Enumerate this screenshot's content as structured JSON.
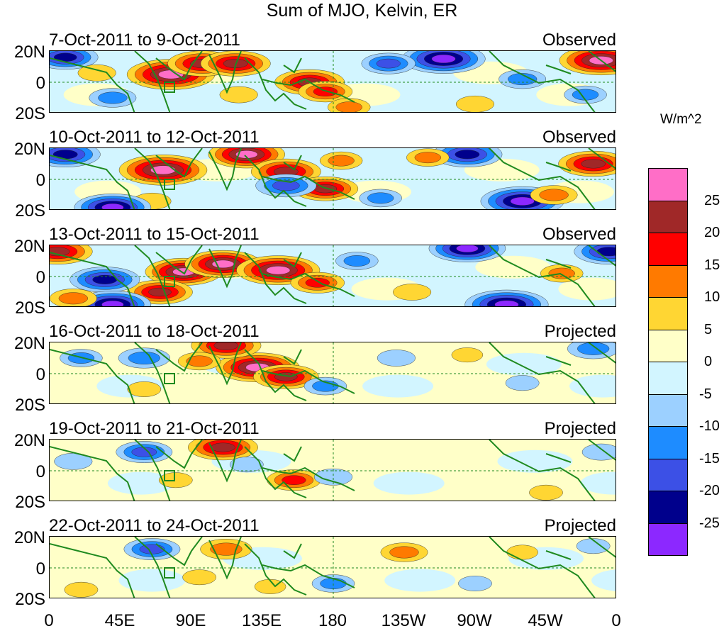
{
  "chart_data": {
    "type": "heatmap",
    "title": "Sum of MJO, Kelvin, ER",
    "units": "W/m^2",
    "x_tick_labels": [
      "0",
      "45E",
      "90E",
      "135E",
      "180",
      "135W",
      "90W",
      "45W",
      "0"
    ],
    "y_tick_labels": [
      "20N",
      "0",
      "20S"
    ],
    "lon_range": [
      0,
      360
    ],
    "lat_range": [
      -20,
      20
    ],
    "colorbar": {
      "labels": [
        "25",
        "20",
        "15",
        "10",
        "5",
        "0",
        "-5",
        "-10",
        "-15",
        "-20",
        "-25"
      ],
      "colors": [
        "#ff6ec7",
        "#a02828",
        "#ff0000",
        "#ff7a00",
        "#ffd633",
        "#ffffc8",
        "#d2f5ff",
        "#9cd0ff",
        "#1e8cff",
        "#3c50e6",
        "#00008c",
        "#8c28ff"
      ]
    },
    "panels": [
      {
        "date_label": "7-Oct-2011 to 9-Oct-2011",
        "status": "Observed",
        "blobs": [
          {
            "lon": 77,
            "lat": 5,
            "value": 30
          },
          {
            "lon": 97,
            "lat": 12,
            "value": 22
          },
          {
            "lon": 118,
            "lat": 12,
            "value": 22
          },
          {
            "lon": 165,
            "lat": 0,
            "value": 22
          },
          {
            "lon": 175,
            "lat": -6,
            "value": 15
          },
          {
            "lon": 250,
            "lat": 15,
            "value": -28
          },
          {
            "lon": 215,
            "lat": 12,
            "value": -15
          },
          {
            "lon": 10,
            "lat": 16,
            "value": -20
          },
          {
            "lon": 350,
            "lat": 14,
            "value": 28
          },
          {
            "lon": 30,
            "lat": 6,
            "value": 8
          },
          {
            "lon": 190,
            "lat": -16,
            "value": 10
          },
          {
            "lon": 300,
            "lat": 2,
            "value": -12
          },
          {
            "lon": 120,
            "lat": -8,
            "value": 8
          },
          {
            "lon": 340,
            "lat": -8,
            "value": -10
          },
          {
            "lon": 40,
            "lat": -10,
            "value": -12
          },
          {
            "lon": 270,
            "lat": -14,
            "value": 8
          }
        ]
      },
      {
        "date_label": "10-Oct-2011 to 12-Oct-2011",
        "status": "Observed",
        "blobs": [
          {
            "lon": 72,
            "lat": 6,
            "value": 30
          },
          {
            "lon": 125,
            "lat": 16,
            "value": 25
          },
          {
            "lon": 150,
            "lat": 5,
            "value": 22
          },
          {
            "lon": 175,
            "lat": -6,
            "value": 20
          },
          {
            "lon": 185,
            "lat": 12,
            "value": 10
          },
          {
            "lon": 65,
            "lat": -14,
            "value": 8
          },
          {
            "lon": 300,
            "lat": -14,
            "value": -28
          },
          {
            "lon": 265,
            "lat": 16,
            "value": -22
          },
          {
            "lon": 10,
            "lat": 16,
            "value": -22
          },
          {
            "lon": 40,
            "lat": -18,
            "value": -25
          },
          {
            "lon": 150,
            "lat": -4,
            "value": -18
          },
          {
            "lon": 345,
            "lat": 10,
            "value": 22
          },
          {
            "lon": 240,
            "lat": 14,
            "value": 10
          },
          {
            "lon": 320,
            "lat": -10,
            "value": 12
          },
          {
            "lon": 210,
            "lat": -12,
            "value": -10
          }
        ]
      },
      {
        "date_label": "13-Oct-2011 to 15-Oct-2011",
        "status": "Observed",
        "blobs": [
          {
            "lon": 85,
            "lat": 3,
            "value": 25
          },
          {
            "lon": 110,
            "lat": 8,
            "value": 25
          },
          {
            "lon": 145,
            "lat": 4,
            "value": 28
          },
          {
            "lon": 170,
            "lat": -4,
            "value": 15
          },
          {
            "lon": 70,
            "lat": -10,
            "value": 20
          },
          {
            "lon": 35,
            "lat": -2,
            "value": -22
          },
          {
            "lon": 40,
            "lat": -18,
            "value": -25
          },
          {
            "lon": 290,
            "lat": -18,
            "value": -28
          },
          {
            "lon": 265,
            "lat": 18,
            "value": -25
          },
          {
            "lon": 355,
            "lat": 16,
            "value": -22
          },
          {
            "lon": 5,
            "lat": 16,
            "value": 22
          },
          {
            "lon": 195,
            "lat": 10,
            "value": -10
          },
          {
            "lon": 325,
            "lat": 2,
            "value": 10
          },
          {
            "lon": 230,
            "lat": -10,
            "value": 8
          },
          {
            "lon": 15,
            "lat": -14,
            "value": 12
          }
        ]
      },
      {
        "date_label": "16-Oct-2011 to 18-Oct-2011",
        "status": "Projected",
        "blobs": [
          {
            "lon": 132,
            "lat": 4,
            "value": 28
          },
          {
            "lon": 150,
            "lat": -2,
            "value": 20
          },
          {
            "lon": 112,
            "lat": 18,
            "value": 22
          },
          {
            "lon": 95,
            "lat": 8,
            "value": 10
          },
          {
            "lon": 60,
            "lat": 10,
            "value": -14
          },
          {
            "lon": 20,
            "lat": 10,
            "value": -10
          },
          {
            "lon": 175,
            "lat": -8,
            "value": -10
          },
          {
            "lon": 220,
            "lat": 10,
            "value": -8
          },
          {
            "lon": 345,
            "lat": 16,
            "value": -14
          },
          {
            "lon": 265,
            "lat": 12,
            "value": 5
          },
          {
            "lon": 60,
            "lat": -10,
            "value": 6
          },
          {
            "lon": 300,
            "lat": -6,
            "value": -6
          }
        ]
      },
      {
        "date_label": "19-Oct-2011 to 21-Oct-2011",
        "status": "Projected",
        "blobs": [
          {
            "lon": 110,
            "lat": 15,
            "value": 22
          },
          {
            "lon": 155,
            "lat": -6,
            "value": 15
          },
          {
            "lon": 60,
            "lat": 12,
            "value": -16
          },
          {
            "lon": 125,
            "lat": 4,
            "value": -6
          },
          {
            "lon": 15,
            "lat": 6,
            "value": -8
          },
          {
            "lon": 180,
            "lat": -4,
            "value": -8
          },
          {
            "lon": 230,
            "lat": 4,
            "value": 4
          },
          {
            "lon": 315,
            "lat": -14,
            "value": 6
          },
          {
            "lon": 80,
            "lat": -6,
            "value": 6
          },
          {
            "lon": 350,
            "lat": 12,
            "value": -8
          }
        ]
      },
      {
        "date_label": "22-Oct-2011 to 24-Oct-2011",
        "status": "Projected",
        "blobs": [
          {
            "lon": 112,
            "lat": 12,
            "value": 14
          },
          {
            "lon": 225,
            "lat": 10,
            "value": 12
          },
          {
            "lon": 65,
            "lat": 12,
            "value": -16
          },
          {
            "lon": 180,
            "lat": -10,
            "value": -10
          },
          {
            "lon": 20,
            "lat": -14,
            "value": 6
          },
          {
            "lon": 140,
            "lat": -12,
            "value": 5
          },
          {
            "lon": 300,
            "lat": 10,
            "value": 5
          },
          {
            "lon": 345,
            "lat": 14,
            "value": -6
          },
          {
            "lon": 270,
            "lat": -10,
            "value": -6
          },
          {
            "lon": 95,
            "lat": -6,
            "value": 6
          }
        ]
      }
    ]
  }
}
